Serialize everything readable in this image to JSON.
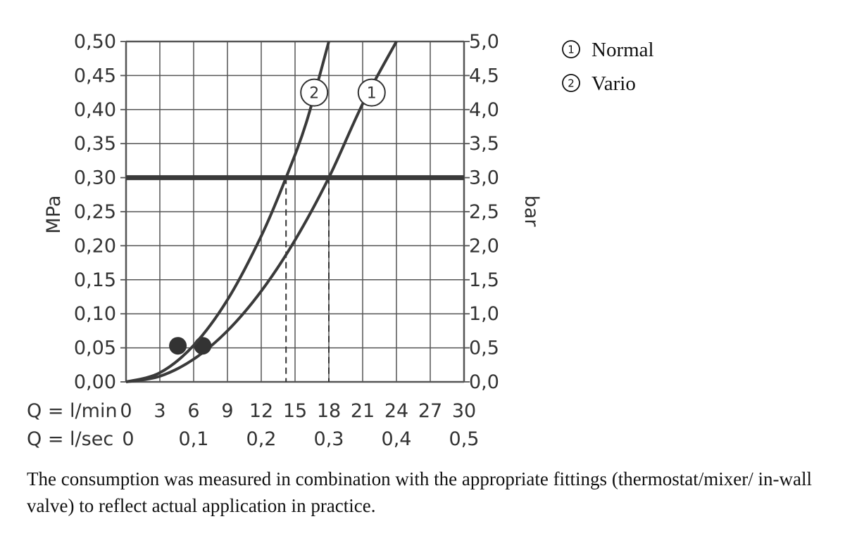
{
  "chart_data": {
    "type": "line",
    "ylabel_left": "MPa",
    "ylabel_right": "bar",
    "ylim": [
      0,
      0.5
    ],
    "xlim": [
      0,
      30
    ],
    "yticks_left": [
      "0,00",
      "0,05",
      "0,10",
      "0,15",
      "0,20",
      "0,25",
      "0,30",
      "0,35",
      "0,40",
      "0,45",
      "0,50"
    ],
    "yticks_right": [
      "0,0",
      "0,5",
      "1,0",
      "1,5",
      "2,0",
      "2,5",
      "3,0",
      "3,5",
      "4,0",
      "4,5",
      "5,0"
    ],
    "x_row1": {
      "label": "Q = l/min",
      "ticks": [
        {
          "value": 0,
          "label": "0"
        },
        {
          "value": 3,
          "label": "3"
        },
        {
          "value": 6,
          "label": "6"
        },
        {
          "value": 9,
          "label": "9"
        },
        {
          "value": 12,
          "label": "12"
        },
        {
          "value": 15,
          "label": "15"
        },
        {
          "value": 18,
          "label": "18"
        },
        {
          "value": 21,
          "label": "21"
        },
        {
          "value": 24,
          "label": "24"
        },
        {
          "value": 27,
          "label": "27"
        },
        {
          "value": 30,
          "label": "30"
        }
      ]
    },
    "x_row2": {
      "label": "Q = l/sec",
      "ticks": [
        {
          "value": 0,
          "label": "0"
        },
        {
          "value": 6,
          "label": "0,1"
        },
        {
          "value": 12,
          "label": "0,2"
        },
        {
          "value": 18,
          "label": "0,3"
        },
        {
          "value": 24,
          "label": "0,4"
        },
        {
          "value": 30,
          "label": "0,5"
        }
      ]
    },
    "series": [
      {
        "name": "Normal",
        "marker_label": "1",
        "x": [
          0,
          3,
          6,
          9,
          12,
          15,
          18,
          21,
          24
        ],
        "y": [
          0,
          0.0083,
          0.0333,
          0.075,
          0.1333,
          0.2083,
          0.3,
          0.4083,
          0.5
        ],
        "min_point": {
          "x": 6.8,
          "y": 0.053
        },
        "marker_at": {
          "x": 21.8,
          "y": 0.425
        }
      },
      {
        "name": "Vario",
        "marker_label": "2",
        "x": [
          0,
          3,
          6,
          9,
          12,
          14.2,
          16,
          18
        ],
        "y": [
          0,
          0.0134,
          0.0536,
          0.1205,
          0.2142,
          0.3,
          0.381,
          0.5
        ],
        "min_point": {
          "x": 4.6,
          "y": 0.053
        },
        "marker_at": {
          "x": 16.7,
          "y": 0.425
        }
      }
    ],
    "reference_line": {
      "y": 0.3
    },
    "drop_lines": [
      {
        "x": 14.2,
        "y": 0.3
      },
      {
        "x": 18,
        "y": 0.3
      }
    ],
    "grid": true,
    "legend_position": "top-right"
  },
  "legend": [
    {
      "num": "1",
      "label": "Normal"
    },
    {
      "num": "2",
      "label": "Vario"
    }
  ],
  "caption": "The consumption was measured in combination with the appropriate fittings (thermostat/mixer/ in-wall valve) to reflect actual application in practice.",
  "colors": {
    "curve": "#3a3a3a",
    "grid": "#555555",
    "text": "#333333"
  }
}
